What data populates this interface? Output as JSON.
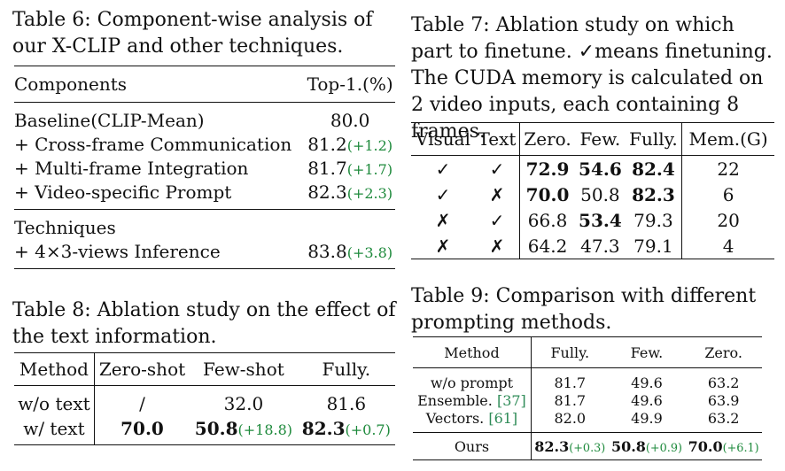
{
  "table6": {
    "caption": "Table 6: Component-wise analysis of our X-CLIP and other techniques.",
    "header": [
      "Components",
      "Top-1.(%)"
    ],
    "rows": [
      {
        "label": "Baseline(CLIP-Mean)",
        "value": "80.0",
        "delta": ""
      },
      {
        "label": "+ Cross-frame Communication",
        "value": "81.2",
        "delta": "(+1.2)"
      },
      {
        "label": "+ Multi-frame Integration",
        "value": "81.7",
        "delta": "(+1.7)"
      },
      {
        "label": "+ Video-specific Prompt",
        "value": "82.3",
        "delta": "(+2.3)"
      }
    ],
    "group2_label": "Techniques",
    "group2_rows": [
      {
        "label": "+ 4×3-views Inference",
        "value": "83.8",
        "delta": "(+3.8)"
      }
    ]
  },
  "table7": {
    "caption": "Table 7: Ablation study on which part to finetune. ✓means finetuning. The CUDA memory is calculated on 2 video inputs, each containing 8 frames.",
    "header": [
      "Visual",
      "Text",
      "Zero.",
      "Few.",
      "Fully.",
      "Mem.(G)"
    ],
    "rows": [
      {
        "visual": "✓",
        "text": "✓",
        "zero": "72.9",
        "few": "54.6",
        "fully": "82.4",
        "mem": "22"
      },
      {
        "visual": "✓",
        "text": "✗",
        "zero": "70.0",
        "few": "50.8",
        "fully": "82.3",
        "mem": "6"
      },
      {
        "visual": "✗",
        "text": "✓",
        "zero": "66.8",
        "few": "53.4",
        "fully": "79.3",
        "mem": "20"
      },
      {
        "visual": "✗",
        "text": "✗",
        "zero": "64.2",
        "few": "47.3",
        "fully": "79.1",
        "mem": "4"
      }
    ]
  },
  "table8": {
    "caption": "Table 8: Ablation study on the effect of the text information.",
    "header": [
      "Method",
      "Zero-shot",
      "Few-shot",
      "Fully."
    ],
    "rows": [
      {
        "method": "w/o text",
        "zero": "/",
        "few": "32.0",
        "few_delta": "",
        "fully": "81.6",
        "fully_delta": ""
      },
      {
        "method": "w/ text",
        "zero": "70.0",
        "few": "50.8",
        "few_delta": "(+18.8)",
        "fully": "82.3",
        "fully_delta": "(+0.7)"
      }
    ]
  },
  "table9": {
    "caption": "Table 9: Comparison with different prompting methods.",
    "header": [
      "Method",
      "Fully.",
      "Few.",
      "Zero."
    ],
    "rows": [
      {
        "method": "w/o prompt",
        "cite": "",
        "fully": "81.7",
        "few": "49.6",
        "zero": "63.2"
      },
      {
        "method": "Ensemble. ",
        "cite": "[37]",
        "fully": "81.7",
        "few": "49.6",
        "zero": "63.9"
      },
      {
        "method": "Vectors. ",
        "cite": "[61]",
        "fully": "82.0",
        "few": "49.9",
        "zero": "63.2"
      }
    ],
    "ours": {
      "method": "Ours",
      "fully": "82.3",
      "fully_delta": "(+0.3)",
      "few": "50.8",
      "few_delta": "(+0.9)",
      "zero": "70.0",
      "zero_delta": "(+6.1)"
    }
  },
  "colors": {
    "delta_green": "#1e8a3c",
    "citation_green": "#2e8b57"
  }
}
